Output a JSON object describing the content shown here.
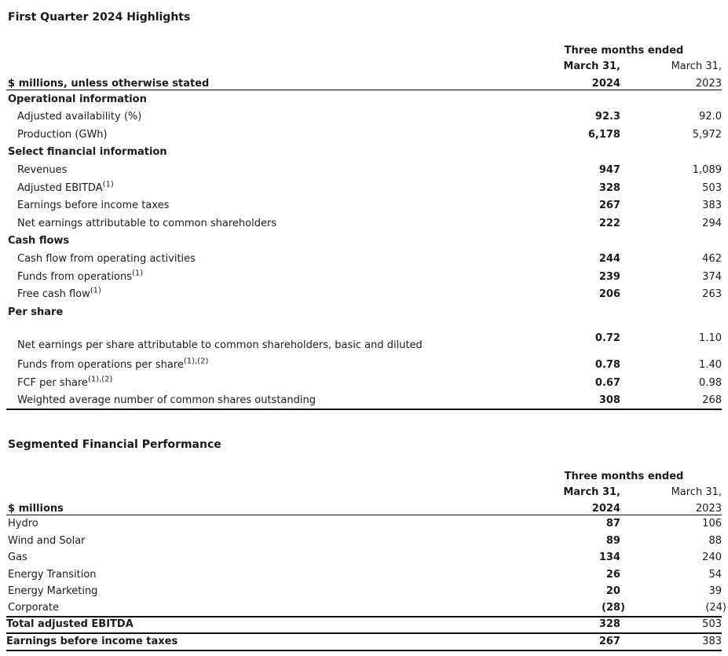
{
  "highlights": {
    "title": "First Quarter 2024 Highlights",
    "header": {
      "period_label": "Three months ended",
      "unit_label": "$ millions, unless otherwise stated",
      "col_2024": {
        "line1": "March 31,",
        "line2": "2024"
      },
      "col_2023": {
        "line1": "March 31,",
        "line2": "2023"
      }
    },
    "rows": [
      {
        "type": "section",
        "label": "Operational information"
      },
      {
        "type": "item",
        "label": "Adjusted availability (%)",
        "v2024": "92.3",
        "v2023": "92.0"
      },
      {
        "type": "item",
        "label": "Production (GWh)",
        "v2024": "6,178",
        "v2023": "5,972"
      },
      {
        "type": "section",
        "label": "Select financial information"
      },
      {
        "type": "item",
        "label": "Revenues",
        "v2024": "947",
        "v2023": "1,089"
      },
      {
        "type": "item",
        "label": "Adjusted EBITDA",
        "sup": "(1)",
        "v2024": "328",
        "v2023": "503"
      },
      {
        "type": "item",
        "label": "Earnings before income taxes",
        "v2024": "267",
        "v2023": "383"
      },
      {
        "type": "item",
        "label": "Net earnings attributable to common shareholders",
        "v2024": "222",
        "v2023": "294"
      },
      {
        "type": "section",
        "label": "Cash flows"
      },
      {
        "type": "item",
        "label": "Cash flow from operating activities",
        "v2024": "244",
        "v2023": "462"
      },
      {
        "type": "item",
        "label": "Funds from operations",
        "sup": "(1)",
        "v2024": "239",
        "v2023": "374"
      },
      {
        "type": "item",
        "label": "Free cash flow",
        "sup": "(1)",
        "v2024": "206",
        "v2023": "263"
      },
      {
        "type": "section",
        "label": "Per share"
      },
      {
        "type": "item",
        "label": "Net earnings per share attributable to common shareholders, basic and diluted",
        "v2024": "0.72",
        "v2023": "1.10"
      },
      {
        "type": "item",
        "label": "Funds from operations per share",
        "sup": "(1),(2)",
        "v2024": "0.78",
        "v2023": "1.40"
      },
      {
        "type": "item",
        "label": "FCF per share",
        "sup": "(1),(2)",
        "v2024": "0.67",
        "v2023": "0.98"
      },
      {
        "type": "item",
        "label": "Weighted average number of common shares outstanding",
        "v2024": "308",
        "v2023": "268"
      }
    ]
  },
  "segmented": {
    "title": "Segmented Financial Performance",
    "header": {
      "period_label": "Three months ended",
      "unit_label": "$ millions",
      "col_2024": {
        "line1": "March 31,",
        "line2": "2024"
      },
      "col_2023": {
        "line1": "March 31,",
        "line2": "2023"
      }
    },
    "rows": [
      {
        "type": "row",
        "label": "Hydro",
        "v2024": "87",
        "v2023": "106"
      },
      {
        "type": "row",
        "label": "Wind and Solar",
        "v2024": "89",
        "v2023": "88"
      },
      {
        "type": "row",
        "label": "Gas",
        "v2024": "134",
        "v2023": "240"
      },
      {
        "type": "row",
        "label": "Energy Transition",
        "v2024": "26",
        "v2023": "54"
      },
      {
        "type": "row",
        "label": "Energy Marketing",
        "v2024": "20",
        "v2023": "39"
      },
      {
        "type": "row",
        "label": "Corporate",
        "v2024": "(28)",
        "v2023": "(24)"
      },
      {
        "type": "total",
        "label": "Total adjusted EBITDA",
        "v2024": "328",
        "v2023": "503"
      },
      {
        "type": "total",
        "label": "Earnings before income taxes",
        "v2024": "267",
        "v2023": "383"
      }
    ]
  }
}
